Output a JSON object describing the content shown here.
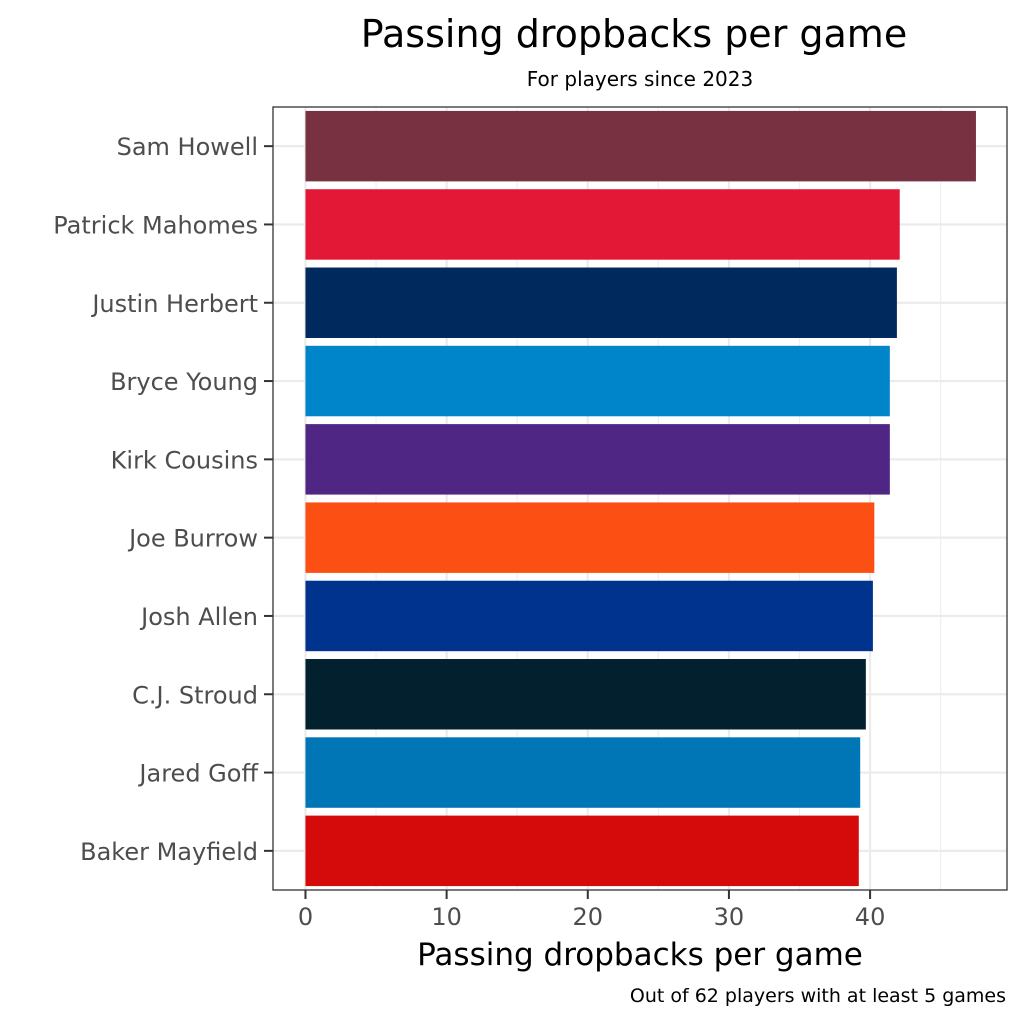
{
  "chart_data": {
    "type": "bar",
    "orientation": "horizontal",
    "title": "Passing dropbacks per game",
    "subtitle": "For players since 2023",
    "xlabel": "Passing dropbacks per game",
    "ylabel": "",
    "caption": "Out of 62 players with at least 5 games",
    "xlim": [
      -2.3,
      49.7
    ],
    "xticks": [
      0,
      10,
      20,
      30,
      40
    ],
    "grid": true,
    "legend": "none",
    "categories": [
      "Sam Howell",
      "Patrick Mahomes",
      "Justin Herbert",
      "Bryce Young",
      "Kirk Cousins",
      "Joe Burrow",
      "Josh Allen",
      "C.J. Stroud",
      "Jared Goff",
      "Baker Mayfield"
    ],
    "values": [
      47.5,
      42.1,
      41.9,
      41.4,
      41.4,
      40.3,
      40.2,
      39.7,
      39.3,
      39.2
    ],
    "colors": [
      "#773141",
      "#E31837",
      "#002A5E",
      "#0085CA",
      "#4F2683",
      "#FB4F14",
      "#00338D",
      "#03202F",
      "#0076B6",
      "#D50A0A"
    ]
  }
}
